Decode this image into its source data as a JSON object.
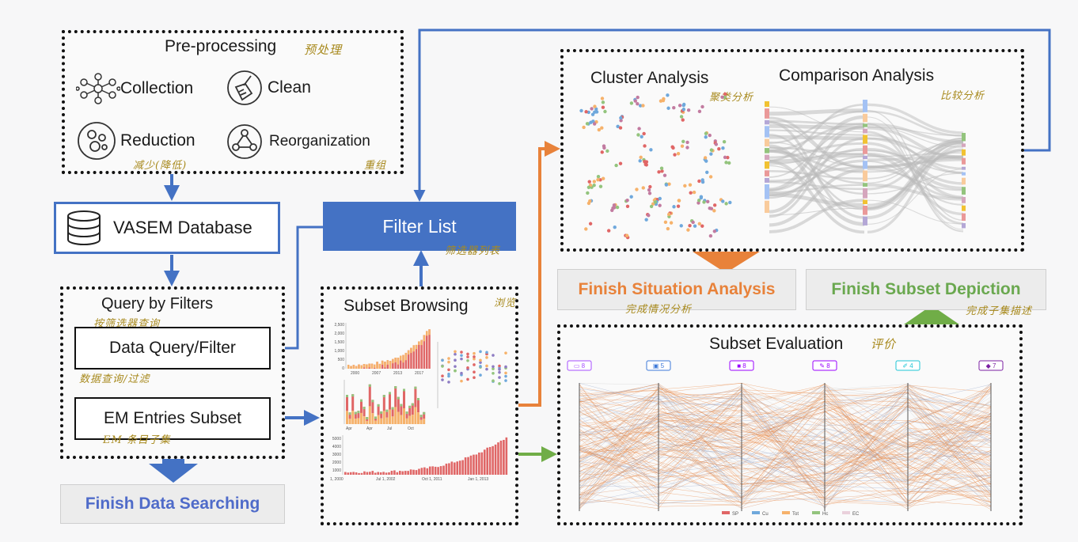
{
  "preprocessing": {
    "title": "Pre-processing",
    "title_note": "预处理",
    "items": [
      {
        "label": "Collection",
        "icon": "network-icon"
      },
      {
        "label": "Clean",
        "icon": "broom-icon"
      },
      {
        "label": "Reduction",
        "icon": "circles-icon"
      },
      {
        "label": "Reorganization",
        "icon": "reorganize-icon"
      }
    ],
    "reduction_note": "减少(降低)",
    "reorganization_note": "重组"
  },
  "database": {
    "label": "VASEM Database"
  },
  "filter_list": {
    "label": "Filter List",
    "note": "筛选器列表"
  },
  "query": {
    "title": "Query by Filters",
    "title_note": "按筛选器查询",
    "data_query": "Data Query/Filter",
    "data_query_note": "数据查询/过滤",
    "em_subset": "EM Entries Subset",
    "em_subset_note": "EM 条目子集"
  },
  "finish_data": {
    "label": "Finish Data Searching"
  },
  "subset_browsing": {
    "title": "Subset Browsing",
    "title_note": "浏览",
    "chart_a_yticks": [
      "2,500",
      "2,000",
      "1,500",
      "1,000",
      "500",
      "0"
    ],
    "chart_a_xticks": [
      "2000",
      "2007",
      "2013",
      "2017"
    ],
    "chart_c_xticks": [
      "Apr",
      "Apr",
      "Jul",
      "Oct"
    ],
    "chart_d_yticks": [
      "5000",
      "4000",
      "3000",
      "2000",
      "1000"
    ],
    "chart_d_xticks": [
      "1, 2000",
      "Jul 1, 2002",
      "Oct 1, 2011",
      "Jan 1, 2013"
    ]
  },
  "cluster": {
    "title": "Cluster Analysis",
    "note": "聚类分析"
  },
  "comparison": {
    "title": "Comparison Analysis",
    "note": "比较分析"
  },
  "finish_situation": {
    "label": "Finish Situation Analysis",
    "note": "完成情况分析"
  },
  "finish_subset": {
    "label": "Finish Subset Depiction",
    "note": "完成子集描述"
  },
  "evaluation": {
    "title": "Subset Evaluation",
    "title_note": "评价",
    "axis_tags": [
      "8",
      "5",
      "8",
      "8",
      "4",
      "7"
    ],
    "legend": [
      "SP",
      "Cu",
      "Tot",
      "Hc",
      "EC"
    ]
  },
  "colors": {
    "blue": "#4472c4",
    "orange": "#e8823a",
    "green": "#70ad47",
    "finish_blue": "#4f6bc9",
    "finish_orange": "#e8823a",
    "finish_green": "#6aa84f"
  }
}
